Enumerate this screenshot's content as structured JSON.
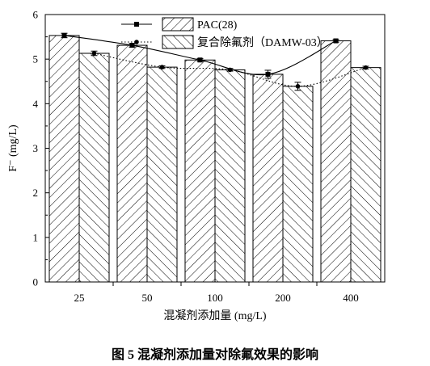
{
  "caption": "图 5  混凝剂添加量对除氟效果的影响",
  "chart_data": {
    "type": "bar",
    "xlabel": "混凝剂添加量 (mg/L)",
    "ylabel": "F⁻ (mg/L)",
    "ylim": [
      0,
      6
    ],
    "yticks": [
      "0",
      "1",
      "2",
      "3",
      "4",
      "5",
      "6"
    ],
    "categories": [
      "25",
      "50",
      "100",
      "200",
      "400"
    ],
    "grid": false,
    "legend_position": "top-center",
    "series": [
      {
        "name": "PAC(28)",
        "values": [
          5.53,
          5.31,
          4.98,
          4.66,
          5.41
        ],
        "errors": [
          0.05,
          0.04,
          0.03,
          0.09,
          0.03
        ],
        "fit_line": "solid",
        "marker": "square",
        "hatch": "forward"
      },
      {
        "name": "复合除氟剂（DAMW-03）",
        "values": [
          5.13,
          4.82,
          4.76,
          4.39,
          4.81
        ],
        "errors": [
          0.05,
          0.03,
          0.03,
          0.09,
          0.03
        ],
        "fit_line": "dotted",
        "marker": "circle",
        "hatch": "backward"
      }
    ]
  }
}
